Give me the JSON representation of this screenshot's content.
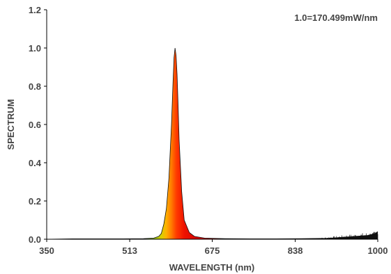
{
  "chart_data": {
    "type": "area",
    "title": "",
    "annotation": "1.0=170.499mW/nm",
    "xlabel": "WAVELENGTH (nm)",
    "ylabel": "SPECTRUM",
    "xlim": [
      350,
      1000
    ],
    "ylim": [
      0,
      1.2
    ],
    "x_ticks": [
      350,
      513,
      675,
      838,
      1000
    ],
    "y_ticks": [
      0.0,
      0.2,
      0.4,
      0.6,
      0.8,
      1.0,
      1.2
    ],
    "y_tick_labels": [
      "0.0",
      "0.2",
      "0.4",
      "0.6",
      "0.8",
      "1.0",
      "1.2"
    ],
    "grid": false,
    "fill": "wavelength-color gradient under curve",
    "series": [
      {
        "x": [
          350,
          400,
          450,
          500,
          540,
          560,
          570,
          575,
          580,
          585,
          590,
          595,
          598,
          600,
          602,
          604,
          606,
          608,
          610,
          615,
          620,
          630,
          640,
          660,
          700,
          750,
          800,
          850,
          900,
          920,
          940,
          960,
          980,
          995,
          1000
        ],
        "y": [
          0.0,
          0.002,
          0.002,
          0.002,
          0.003,
          0.006,
          0.015,
          0.03,
          0.08,
          0.16,
          0.32,
          0.6,
          0.82,
          0.95,
          1.0,
          0.96,
          0.86,
          0.7,
          0.52,
          0.25,
          0.1,
          0.035,
          0.015,
          0.006,
          0.003,
          0.002,
          0.002,
          0.003,
          0.005,
          0.008,
          0.012,
          0.016,
          0.02,
          0.03,
          0.04
        ]
      }
    ]
  }
}
